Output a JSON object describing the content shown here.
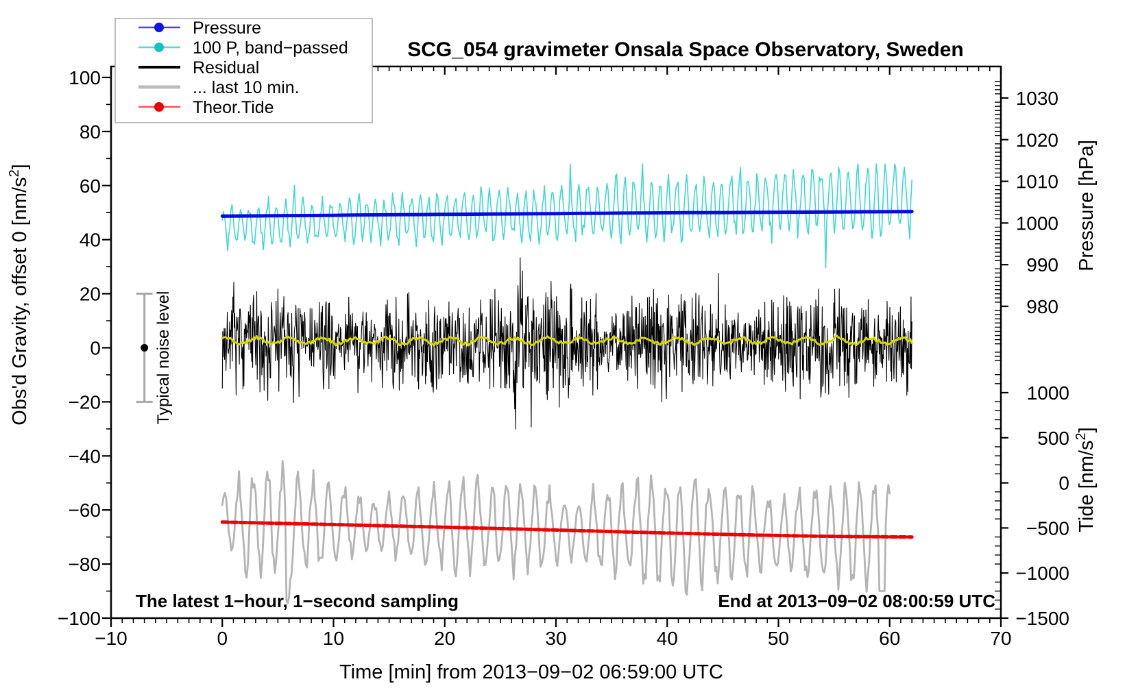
{
  "title": "SCG_054 gravimeter Onsala Space Observatory, Sweden",
  "legend": {
    "items": [
      {
        "label": "Pressure",
        "line_color": "#4747e0",
        "dot": true,
        "dot_color": "#1212ee",
        "line_width": 2.5
      },
      {
        "label": "100 P, band−passed",
        "line_color": "#52dcd2",
        "dot": true,
        "dot_color": "#14c4c4",
        "line_width": 2.5
      },
      {
        "label": "Residual",
        "line_color": "#000000",
        "dot": false,
        "dot_color": "",
        "line_width": 4
      },
      {
        "label": "... last 10 min.",
        "line_color": "#bcbcbc",
        "dot": false,
        "dot_color": "",
        "line_width": 5
      },
      {
        "label": "Theor.Tide",
        "line_color": "#ff5555",
        "dot": true,
        "dot_color": "#ee0000",
        "line_width": 2.5
      }
    ]
  },
  "axes": {
    "x": {
      "label": "Time [min] from 2013−09−02 06:59:00 UTC",
      "min": -10,
      "max": 70,
      "major_ticks": [
        -10,
        0,
        10,
        20,
        30,
        40,
        50,
        60,
        70
      ],
      "minor_step": 1
    },
    "y_left": {
      "label_pre": "Obs'd Gravity, offset 0 [nm/s",
      "label_sup": "2",
      "label_post": "]",
      "min": -100,
      "max": 100,
      "major_ticks": [
        -100,
        -80,
        -60,
        -40,
        -20,
        0,
        20,
        40,
        60,
        80,
        100
      ],
      "minor_ticks": [
        -90,
        -70,
        -50,
        -30,
        -10,
        10,
        30,
        50,
        70,
        90
      ]
    },
    "y_right_pressure": {
      "label": "Pressure [hPa]",
      "major_ticks": [
        1030,
        1020,
        1010,
        1000,
        990,
        980
      ],
      "minor_step": 1,
      "minor_range": [
        967,
        1034
      ]
    },
    "y_right_tide": {
      "label_pre": "Tide [nm/s",
      "label_sup": "2",
      "label_post": "]",
      "major_ticks": [
        1000,
        500,
        0,
        -500,
        -1000,
        -1500
      ],
      "minor_step": 100,
      "minor_range": [
        -1500,
        1200
      ]
    }
  },
  "annotations": {
    "sampling_note": "The latest 1−hour, 1−second sampling",
    "end_note": "End at 2013−09−02 08:00:59 UTC",
    "noise_bar": {
      "label": "Typical noise level",
      "x_min": -7,
      "g_from": -20,
      "g_to": 20
    }
  },
  "chart_data": {
    "type": "line",
    "x_unit": "minutes from 2013-09-02 06:59:00 UTC",
    "x_range": [
      0,
      62
    ],
    "gravity_axis_range": [
      -100,
      100
    ],
    "pressure_axis_range_hPa": [
      967,
      1035
    ],
    "tide_axis_range_nm_s2": [
      -1500,
      1200
    ],
    "series": [
      {
        "name": "Pressure",
        "axis": "pressure_hPa",
        "color": "#0a0ae0",
        "width": 5,
        "points": [
          [
            0,
            1001.65
          ],
          [
            2,
            1001.7
          ],
          [
            4,
            1001.72
          ],
          [
            6,
            1001.78
          ],
          [
            8,
            1001.8
          ],
          [
            10,
            1001.85
          ],
          [
            12,
            1001.92
          ],
          [
            14,
            1001.95
          ],
          [
            16,
            1002.0
          ],
          [
            18,
            1002.02
          ],
          [
            20,
            1002.08
          ],
          [
            22,
            1002.1
          ],
          [
            24,
            1002.15
          ],
          [
            26,
            1002.18
          ],
          [
            28,
            1002.22
          ],
          [
            30,
            1002.25
          ],
          [
            32,
            1002.3
          ],
          [
            34,
            1002.32
          ],
          [
            36,
            1002.38
          ],
          [
            38,
            1002.4
          ],
          [
            40,
            1002.45
          ],
          [
            42,
            1002.48
          ],
          [
            44,
            1002.5
          ],
          [
            46,
            1002.52
          ],
          [
            48,
            1002.55
          ],
          [
            50,
            1002.58
          ],
          [
            52,
            1002.6
          ],
          [
            54,
            1002.63
          ],
          [
            56,
            1002.67
          ],
          [
            58,
            1002.7
          ],
          [
            60,
            1002.72
          ],
          [
            62,
            1002.75
          ]
        ]
      },
      {
        "name": "100 P, band-passed",
        "axis": "gravity_nm_s2",
        "color": "#3cd8ce",
        "width": 1.6,
        "style": "synthesized-noise",
        "approx": {
          "center_start": 45.0,
          "center_end": 55.5,
          "amplitude_start": 6.5,
          "amplitude_end": 11.5,
          "extremes": [
            28,
            68
          ]
        },
        "render": {
          "n": 640,
          "seed": 3,
          "jitter": 3,
          "spike_prob": 0.05,
          "spike_scale": 1.8
        }
      },
      {
        "name": "Residual",
        "axis": "gravity_nm_s2",
        "color": "#000000",
        "width": 1.1,
        "style": "synthesized-noise",
        "approx": {
          "center": 2,
          "typical_spread": 9,
          "extremes": [
            -34,
            36
          ],
          "burst_at_min": 26.5
        },
        "render": {
          "n": 1500,
          "seed": 7
        }
      },
      {
        "name": "Residual smoothed",
        "axis": "gravity_nm_s2",
        "color": "#d6d600",
        "width": 3,
        "style": "synthesized-noise",
        "approx": {
          "center": 2.6,
          "amplitude": 1.4
        },
        "render": {
          "n": 420,
          "seed": 11
        }
      },
      {
        "name": "... last 10 min.",
        "axis": "gravity_nm_s2",
        "color": "#b4b4b4",
        "width": 2.8,
        "style": "synthesized-noise",
        "x_range": [
          0,
          60
        ],
        "approx": {
          "center_start": -64.3,
          "center_end": -69.4,
          "amplitude_typical": 13,
          "extremes": [
            -99,
            -31
          ],
          "deep_dip_at_min": 5.7,
          "late_dip_at_min": 59.3
        },
        "render": {
          "n": 520,
          "seed": 5
        }
      },
      {
        "name": "Theor.Tide",
        "axis": "tide_nm_s2",
        "color": "#ee0000",
        "width": 5,
        "dash": "9 4",
        "points": [
          [
            0,
            -435
          ],
          [
            4,
            -446
          ],
          [
            8,
            -457
          ],
          [
            12,
            -468
          ],
          [
            16,
            -480
          ],
          [
            20,
            -492
          ],
          [
            24,
            -504
          ],
          [
            28,
            -517
          ],
          [
            32,
            -530
          ],
          [
            36,
            -543
          ],
          [
            40,
            -556
          ],
          [
            44,
            -568
          ],
          [
            48,
            -579
          ],
          [
            52,
            -588
          ],
          [
            56,
            -595
          ],
          [
            60,
            -599
          ],
          [
            62,
            -600
          ]
        ]
      }
    ]
  }
}
